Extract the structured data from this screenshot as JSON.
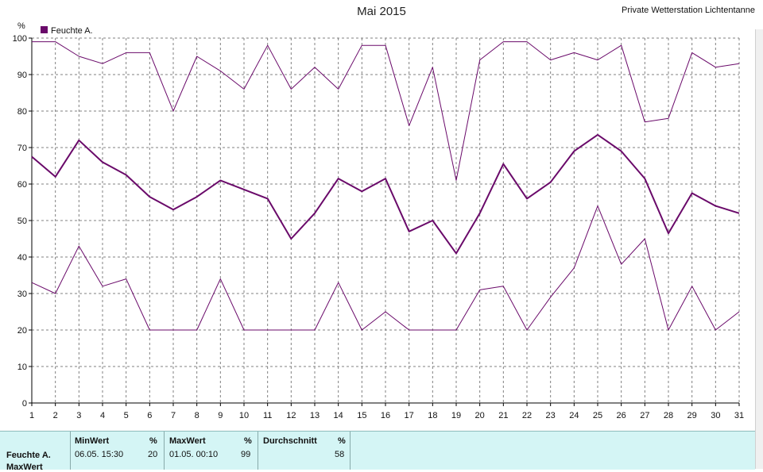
{
  "header": {
    "title": "Mai 2015",
    "station": "Private Wetterstation Lichtentanne"
  },
  "legend": {
    "label": "Feuchte A.",
    "unit": "%"
  },
  "colors": {
    "series": "#6a0a6a",
    "grid": "#808080",
    "panel": "#d4f5f5"
  },
  "chart_data": {
    "type": "line",
    "title": "Mai 2015",
    "ylabel": "%",
    "xlabel": "",
    "ylim": [
      0,
      100
    ],
    "yticks": [
      0,
      10,
      20,
      30,
      40,
      50,
      60,
      70,
      80,
      90,
      100
    ],
    "x": [
      1,
      2,
      3,
      4,
      5,
      6,
      7,
      8,
      9,
      10,
      11,
      12,
      13,
      14,
      15,
      16,
      17,
      18,
      19,
      20,
      21,
      22,
      23,
      24,
      25,
      26,
      27,
      28,
      29,
      30,
      31
    ],
    "grid": true,
    "legend_position": "top-left",
    "series": [
      {
        "name": "Feuchte A.",
        "role": "max",
        "values": [
          99,
          99,
          95,
          93,
          96,
          96,
          80,
          95,
          91,
          86,
          98,
          86,
          92,
          86,
          98,
          98,
          76,
          92,
          61,
          94,
          99,
          99,
          94,
          96,
          94,
          98,
          77,
          78,
          96,
          92,
          93
        ]
      },
      {
        "role": "avg",
        "values": [
          67.5,
          62,
          72,
          66,
          62.5,
          56.5,
          53,
          56.5,
          61,
          58.5,
          56,
          45,
          52,
          61.5,
          58,
          61.5,
          47,
          50,
          41,
          52,
          65.5,
          56,
          60.5,
          69,
          73.5,
          69,
          61.5,
          46.5,
          57.5,
          54,
          52
        ]
      },
      {
        "role": "min",
        "values": [
          33,
          30,
          43,
          32,
          34,
          20,
          20,
          20,
          34,
          20,
          20,
          20,
          20,
          33,
          20,
          25,
          20,
          20,
          20,
          31,
          32,
          20,
          29,
          37,
          54,
          38,
          45,
          20,
          32,
          20,
          25
        ]
      }
    ]
  },
  "stats": {
    "row_label": "Feuchte A.",
    "row_label2": "MaxWert",
    "min": {
      "label": "MinWert",
      "unit": "%",
      "time": "06.05.  15:30",
      "value": "20"
    },
    "max": {
      "label": "MaxWert",
      "unit": "%",
      "time": "01.05.  00:10",
      "value": "99"
    },
    "avg": {
      "label": "Durchschnitt",
      "unit": "%",
      "value": "58"
    }
  }
}
